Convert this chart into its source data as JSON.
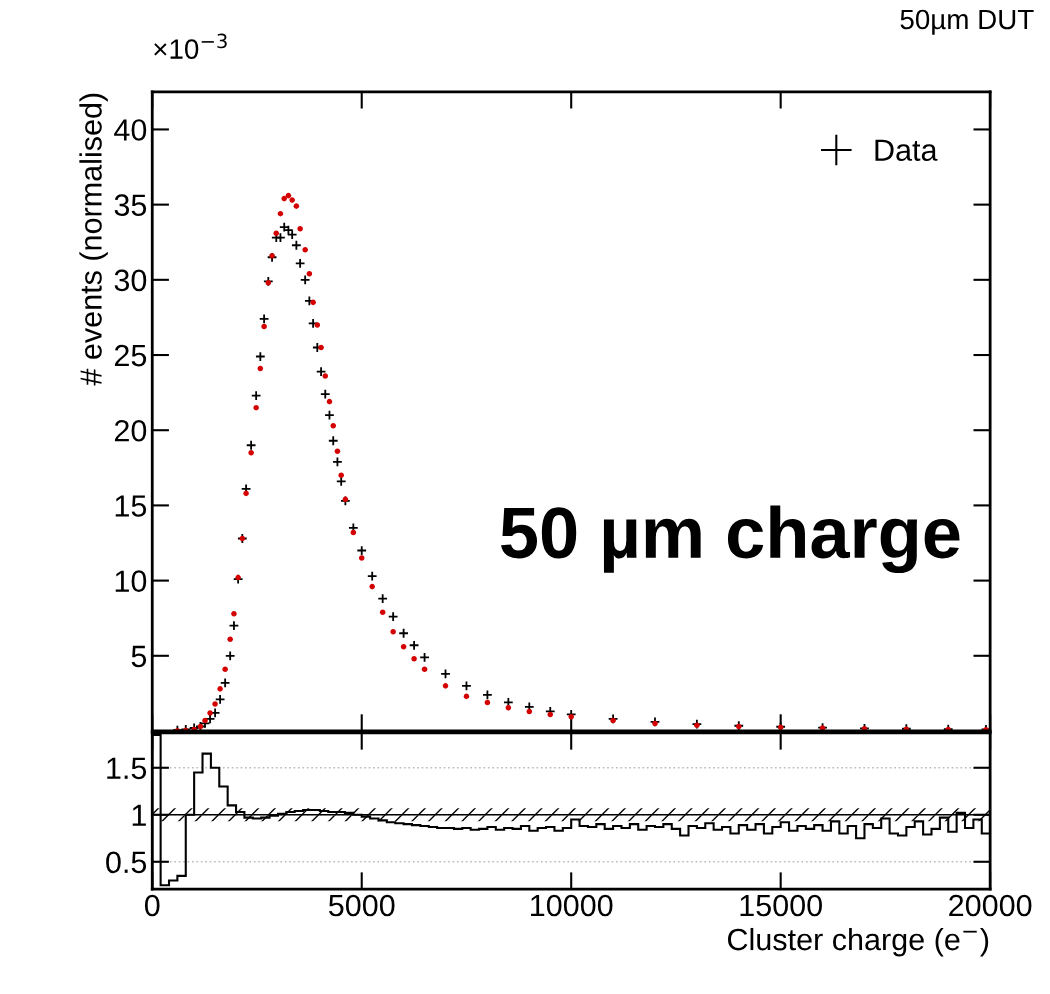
{
  "chart_data": [
    {
      "type": "scatter",
      "ylabel": "# events (normalised)",
      "annotations": [
        "50µm DUT",
        "×10$^{−3}$",
        "50 µm charge"
      ],
      "xlim": [
        0,
        20000
      ],
      "xticks": [
        0,
        5000,
        10000,
        15000,
        20000
      ],
      "ylim": [
        0,
        42.5
      ],
      "yticks": [
        5,
        10,
        15,
        20,
        25,
        30,
        35,
        40
      ],
      "tick_labels": "y",
      "legend": "top right",
      "series": [
        {
          "name": "Data",
          "color": "#000000",
          "marker": "cross",
          "x": [
            600,
            800,
            1000,
            1150,
            1260,
            1380,
            1500,
            1620,
            1740,
            1860,
            1950,
            2050,
            2150,
            2240,
            2360,
            2480,
            2580,
            2670,
            2770,
            2860,
            2960,
            3060,
            3150,
            3250,
            3340,
            3440,
            3530,
            3650,
            3750,
            3840,
            3940,
            4030,
            4130,
            4230,
            4320,
            4420,
            4510,
            4610,
            4800,
            5000,
            5250,
            5500,
            5750,
            6000,
            6250,
            6500,
            7000,
            7500,
            8000,
            8500,
            9000,
            9500,
            10000,
            11000,
            12000,
            13000,
            14000,
            15000,
            16000,
            17000,
            18000,
            19000,
            19900
          ],
          "values": [
            0.05,
            0.1,
            0.2,
            0.3,
            0.5,
            0.8,
            1.2,
            2.1,
            3.2,
            5.0,
            7.0,
            10.1,
            12.8,
            16.1,
            19.0,
            22.3,
            24.9,
            27.4,
            29.9,
            31.5,
            32.8,
            32.8,
            33.5,
            33.3,
            33.0,
            32.3,
            31.1,
            30.0,
            28.6,
            27.1,
            25.5,
            23.9,
            22.4,
            21.0,
            19.3,
            17.9,
            16.6,
            15.3,
            13.5,
            12.0,
            10.3,
            8.8,
            7.6,
            6.5,
            5.7,
            4.9,
            3.8,
            3.0,
            2.4,
            1.9,
            1.6,
            1.3,
            1.1,
            0.8,
            0.6,
            0.45,
            0.35,
            0.28,
            0.22,
            0.18,
            0.15,
            0.12,
            0.1
          ]
        },
        {
          "color": "#d40000",
          "marker": "circle",
          "x": [
            600,
            800,
            1000,
            1150,
            1260,
            1380,
            1500,
            1620,
            1740,
            1860,
            1950,
            2050,
            2150,
            2240,
            2360,
            2480,
            2580,
            2670,
            2770,
            2860,
            2960,
            3060,
            3150,
            3250,
            3340,
            3440,
            3530,
            3650,
            3750,
            3840,
            3940,
            4030,
            4130,
            4230,
            4320,
            4420,
            4510,
            4610,
            4800,
            5000,
            5250,
            5500,
            5750,
            6000,
            6250,
            6500,
            7000,
            7500,
            8000,
            8500,
            9000,
            9500,
            10000,
            11000,
            12000,
            13000,
            14000,
            15000,
            16000,
            17000,
            18000,
            19000,
            19900
          ],
          "values": [
            0.02,
            0.04,
            0.1,
            0.3,
            0.7,
            1.2,
            1.8,
            2.8,
            4.1,
            6.1,
            7.8,
            10.2,
            12.8,
            15.8,
            18.5,
            21.5,
            24.1,
            26.9,
            29.8,
            31.6,
            33.1,
            34.4,
            35.4,
            35.6,
            35.3,
            34.9,
            33.4,
            32.0,
            30.4,
            28.5,
            27.0,
            25.5,
            23.6,
            21.9,
            20.3,
            18.6,
            17.0,
            15.4,
            13.2,
            11.5,
            9.6,
            7.9,
            6.6,
            5.6,
            4.8,
            4.1,
            3.0,
            2.3,
            1.9,
            1.55,
            1.3,
            1.1,
            0.95,
            0.7,
            0.5,
            0.38,
            0.3,
            0.24,
            0.19,
            0.15,
            0.12,
            0.1,
            0.08
          ]
        }
      ]
    },
    {
      "type": "histogram",
      "xlabel": "Cluster charge (e$^{−}$)",
      "xlim": [
        0,
        20000
      ],
      "xticks": [
        0,
        5000,
        10000,
        15000,
        20000
      ],
      "ylim": [
        0.21,
        1.87
      ],
      "yticks": [
        0.5,
        1,
        1.5
      ],
      "grid": "y",
      "ref_lines": [
        {
          "axis": "y",
          "value": 1,
          "color": "#000000"
        }
      ],
      "bands": [
        {
          "axis": "y",
          "from": 0.93,
          "to": 1.07,
          "color": "#000000"
        }
      ],
      "color": "#000000",
      "bins": [
        0,
        200,
        400,
        600,
        800,
        1000,
        1200,
        1400,
        1600,
        1800,
        2000,
        2200,
        2400,
        2600,
        2800,
        3000,
        3200,
        3400,
        3600,
        3800,
        4000,
        4200,
        4400,
        4600,
        4800,
        5000,
        5200,
        5400,
        5600,
        5800,
        6000,
        6200,
        6400,
        6600,
        6800,
        7000,
        7200,
        7400,
        7600,
        7800,
        8000,
        8200,
        8400,
        8600,
        8800,
        9000,
        9200,
        9400,
        9600,
        9800,
        10000,
        10200,
        10400,
        10600,
        10800,
        11000,
        11200,
        11400,
        11600,
        11800,
        12000,
        12200,
        12400,
        12600,
        12800,
        13000,
        13200,
        13400,
        13600,
        13800,
        14000,
        14200,
        14400,
        14600,
        14800,
        15000,
        15200,
        15400,
        15600,
        15800,
        16000,
        16200,
        16400,
        16600,
        16800,
        17000,
        17200,
        17400,
        17600,
        17800,
        18000,
        18200,
        18400,
        18600,
        18800,
        19000,
        19200,
        19400,
        19600,
        19800,
        20000
      ],
      "values": [
        1.85,
        0.25,
        0.3,
        0.35,
        1.0,
        1.45,
        1.65,
        1.5,
        1.3,
        1.1,
        1.03,
        0.97,
        0.96,
        0.97,
        0.99,
        1.01,
        1.03,
        1.04,
        1.05,
        1.05,
        1.04,
        1.03,
        1.03,
        1.02,
        1.0,
        0.98,
        0.96,
        0.94,
        0.92,
        0.91,
        0.9,
        0.89,
        0.88,
        0.87,
        0.86,
        0.86,
        0.85,
        0.86,
        0.84,
        0.85,
        0.87,
        0.84,
        0.86,
        0.85,
        0.88,
        0.83,
        0.86,
        0.87,
        0.83,
        0.86,
        0.95,
        0.88,
        0.87,
        0.9,
        0.85,
        0.88,
        0.86,
        0.9,
        0.84,
        0.88,
        0.87,
        0.9,
        0.85,
        0.78,
        0.88,
        0.86,
        0.91,
        0.84,
        0.87,
        0.8,
        0.89,
        0.84,
        0.9,
        0.8,
        0.87,
        0.92,
        0.83,
        0.88,
        0.85,
        0.89,
        0.83,
        0.93,
        0.8,
        0.88,
        0.75,
        0.9,
        0.86,
        0.96,
        0.8,
        0.78,
        0.87,
        0.93,
        0.79,
        0.85,
        0.97,
        0.82,
        1.02,
        0.86,
        0.95,
        0.8
      ]
    }
  ]
}
